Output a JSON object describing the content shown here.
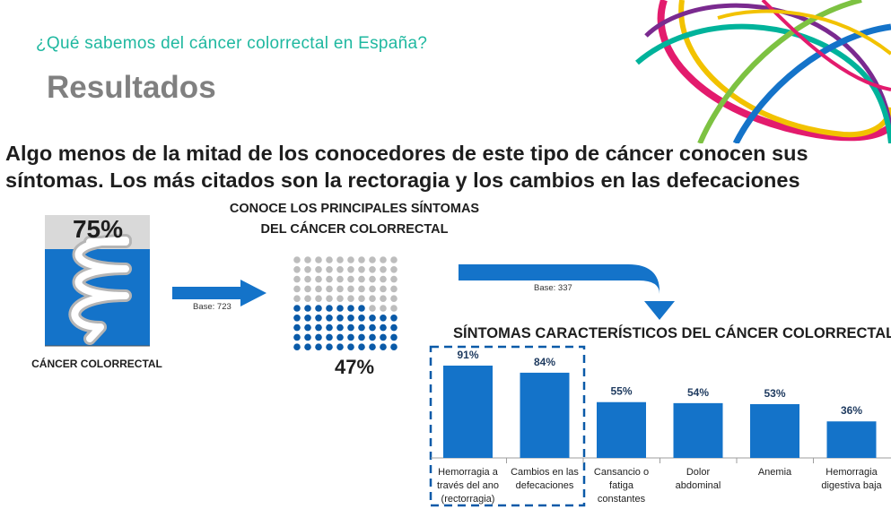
{
  "header": {
    "subtitle": "¿Qué sabemos del cáncer colorrectal en España?",
    "title": "Resultados"
  },
  "headline": {
    "line1": "Algo menos de la mitad de los conocedores de este tipo de cáncer conocen sus",
    "line2": "síntomas. Los más citados son la rectoragia y los cambios en las defecaciones"
  },
  "infographic": {
    "crc_awareness_pct": "75%",
    "crc_awareness_value": 75,
    "crc_label": "CÁNCER COLORRECTAL",
    "base1": "Base: 723",
    "knows_title_line1": "CONOCE LOS PRINCIPALES SÍNTOMAS",
    "knows_title_line2": "DEL CÁNCER COLORRECTAL",
    "knows_pct": "47%",
    "knows_value": 47,
    "base2": "Base: 337"
  },
  "colors": {
    "blue": "#1473c9",
    "dark_blue": "#0a5aa8",
    "gray": "#bdbdbd",
    "teal": "#1fb8a0"
  },
  "chart_data": {
    "type": "bar",
    "title": "SÍNTOMAS CARACTERÍSTICOS DEL CÁNCER COLORRECTAL",
    "categories": [
      [
        "Hemorragia a",
        "través del ano",
        "(rectorragia)"
      ],
      [
        "Cambios en las",
        "defecaciones"
      ],
      [
        "Cansancio o",
        "fatiga",
        "constantes"
      ],
      [
        "Dolor",
        "abdominal"
      ],
      [
        "Anemia"
      ],
      [
        "Hemorragia",
        "digestiva baja"
      ]
    ],
    "values": [
      91,
      84,
      55,
      54,
      53,
      36
    ],
    "value_labels": [
      "91%",
      "84%",
      "55%",
      "54%",
      "53%",
      "36%"
    ],
    "unit": "%",
    "highlighted": [
      0,
      1
    ]
  }
}
